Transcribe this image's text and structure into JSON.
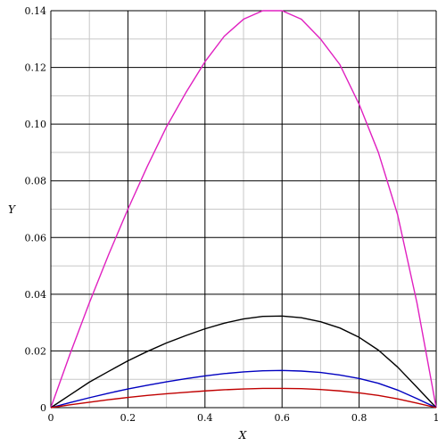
{
  "chart_data": {
    "type": "line",
    "title": "",
    "xlabel": "X",
    "ylabel": "Y",
    "xlim": [
      0,
      1
    ],
    "ylim": [
      0,
      0.14
    ],
    "grid": true,
    "x_ticks": [
      0,
      0.2,
      0.4,
      0.6,
      0.8,
      1
    ],
    "x_tick_labels": [
      "0",
      "0.2",
      "0.4",
      "0.6",
      "0.8",
      "1"
    ],
    "y_ticks": [
      0,
      0.02,
      0.04,
      0.06,
      0.08,
      0.1,
      0.12,
      0.14
    ],
    "y_tick_labels": [
      "0",
      "0.02",
      "0.04",
      "0.06",
      "0.08",
      "0.10",
      "0.12",
      "0.14"
    ],
    "x": [
      0,
      0.05,
      0.1,
      0.15,
      0.2,
      0.25,
      0.3,
      0.35,
      0.4,
      0.45,
      0.5,
      0.55,
      0.6,
      0.65,
      0.7,
      0.75,
      0.8,
      0.85,
      0.9,
      0.95,
      1.0
    ],
    "series": [
      {
        "color": "#e020c0",
        "values": [
          0,
          0.019,
          0.037,
          0.054,
          0.07,
          0.085,
          0.099,
          0.111,
          0.122,
          0.131,
          0.137,
          0.14,
          0.14,
          0.137,
          0.13,
          0.121,
          0.107,
          0.09,
          0.068,
          0.037,
          0
        ]
      },
      {
        "color": "#000000",
        "values": [
          0,
          0.0045,
          0.009,
          0.0128,
          0.0165,
          0.0198,
          0.0228,
          0.0254,
          0.0278,
          0.0298,
          0.0313,
          0.0322,
          0.0323,
          0.0317,
          0.0303,
          0.0281,
          0.0248,
          0.0203,
          0.0143,
          0.0072,
          0
        ]
      },
      {
        "color": "#0000c0",
        "values": [
          0,
          0.0018,
          0.0035,
          0.0051,
          0.0066,
          0.0079,
          0.0091,
          0.0102,
          0.0112,
          0.012,
          0.0126,
          0.013,
          0.0131,
          0.0129,
          0.0124,
          0.0115,
          0.0103,
          0.0086,
          0.0062,
          0.0032,
          0
        ]
      },
      {
        "color": "#c00000",
        "values": [
          0,
          0.001,
          0.0019,
          0.0028,
          0.0036,
          0.0043,
          0.0049,
          0.0054,
          0.0059,
          0.0063,
          0.0066,
          0.0068,
          0.0068,
          0.0067,
          0.0064,
          0.0059,
          0.0052,
          0.0043,
          0.0031,
          0.0016,
          0
        ]
      }
    ]
  }
}
